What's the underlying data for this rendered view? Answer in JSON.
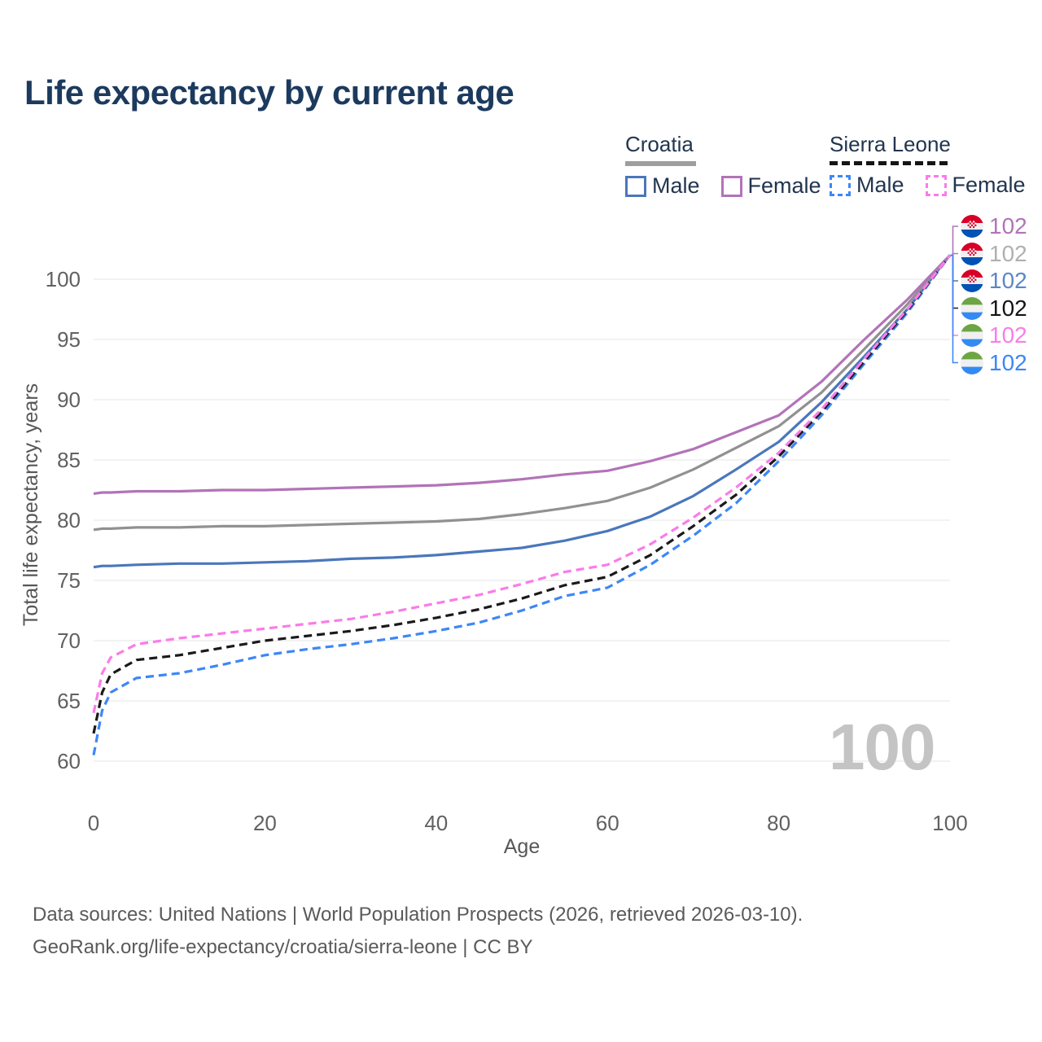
{
  "title": "Life expectancy by current age",
  "watermark": "100",
  "legend": {
    "groups": [
      {
        "country": "Croatia",
        "line_style": "solid",
        "underline_color": "#9e9e9e",
        "items": [
          {
            "label": "Male",
            "color": "#4a77bb",
            "dashed": false
          },
          {
            "label": "Female",
            "color": "#b273b8",
            "dashed": false
          }
        ]
      },
      {
        "country": "Sierra Leone",
        "line_style": "dashed",
        "underline_color": "#151515",
        "items": [
          {
            "label": "Male",
            "color": "#3c87f7",
            "dashed": true
          },
          {
            "label": "Female",
            "color": "#fa7ce9",
            "dashed": true
          }
        ]
      }
    ]
  },
  "footer": {
    "line1": "Data sources: United Nations | World Population Prospects (2026, retrieved 2026-03-10).",
    "line2": "GeoRank.org/life-expectancy/croatia/sierra-leone | CC BY"
  },
  "chart_data": {
    "type": "line",
    "title": "Life expectancy by current age",
    "xlabel": "Age",
    "ylabel": "Total life expectancy, years",
    "x_ticks": [
      0,
      20,
      40,
      60,
      80,
      100
    ],
    "y_ticks": [
      60,
      65,
      70,
      75,
      80,
      85,
      90,
      95,
      100
    ],
    "xlim": [
      0,
      100
    ],
    "ylim": [
      60,
      102
    ],
    "grid": "horizontal",
    "legend_position": "top-right",
    "gridline_color": "#ebebeb",
    "ages": [
      0,
      1,
      2,
      5,
      10,
      15,
      20,
      25,
      30,
      35,
      40,
      45,
      50,
      55,
      60,
      65,
      70,
      75,
      80,
      85,
      90,
      95,
      100
    ],
    "series": [
      {
        "id": "croatia-female",
        "name": "Croatia Female",
        "country": "Croatia",
        "sex": "Female",
        "style": "solid",
        "color": "#b273b8",
        "label_color": "#b273b8",
        "flag": "croatia",
        "end_label": "102",
        "values": [
          82.2,
          82.3,
          82.3,
          82.4,
          82.4,
          82.5,
          82.5,
          82.6,
          82.7,
          82.8,
          82.9,
          83.1,
          83.4,
          83.8,
          84.1,
          84.9,
          85.9,
          87.3,
          88.7,
          91.5,
          95.0,
          98.3,
          102
        ]
      },
      {
        "id": "croatia-total",
        "name": "Croatia Both sexes",
        "country": "Croatia",
        "sex": "Both",
        "style": "solid",
        "color": "#919191",
        "label_color": "#b0b0b0",
        "flag": "croatia",
        "end_label": "102",
        "values": [
          79.2,
          79.3,
          79.3,
          79.4,
          79.4,
          79.5,
          79.5,
          79.6,
          79.7,
          79.8,
          79.9,
          80.1,
          80.5,
          81.0,
          81.6,
          82.7,
          84.2,
          86.0,
          87.8,
          90.6,
          94.2,
          97.9,
          102
        ]
      },
      {
        "id": "croatia-male",
        "name": "Croatia Male",
        "country": "Croatia",
        "sex": "Male",
        "style": "solid",
        "color": "#4a77bb",
        "label_color": "#5b87c6",
        "flag": "croatia",
        "end_label": "102",
        "values": [
          76.1,
          76.2,
          76.2,
          76.3,
          76.4,
          76.4,
          76.5,
          76.6,
          76.8,
          76.9,
          77.1,
          77.4,
          77.7,
          78.3,
          79.1,
          80.3,
          82.0,
          84.2,
          86.5,
          89.8,
          93.6,
          97.5,
          102
        ]
      },
      {
        "id": "sierraleone-total",
        "name": "Sierra Leone Both sexes",
        "country": "Sierra Leone",
        "sex": "Both",
        "style": "dashed",
        "color": "#1a1a1a",
        "label_color": "#141414",
        "flag": "sierra-leone",
        "end_label": "102",
        "values": [
          62.3,
          65.7,
          67.2,
          68.4,
          68.8,
          69.4,
          70.0,
          70.4,
          70.8,
          71.3,
          71.9,
          72.6,
          73.5,
          74.6,
          75.3,
          77.1,
          79.5,
          82.1,
          85.3,
          89.0,
          93.2,
          97.4,
          102
        ]
      },
      {
        "id": "sierraleone-female",
        "name": "Sierra Leone Female",
        "country": "Sierra Leone",
        "sex": "Female",
        "style": "dashed",
        "color": "#fa7ce9",
        "label_color": "#fa7ce9",
        "flag": "sierra-leone",
        "end_label": "102",
        "values": [
          64.0,
          67.3,
          68.6,
          69.7,
          70.2,
          70.6,
          71.0,
          71.4,
          71.8,
          72.4,
          73.1,
          73.8,
          74.7,
          75.7,
          76.3,
          78.0,
          80.2,
          82.7,
          85.6,
          89.2,
          93.4,
          97.5,
          102
        ]
      },
      {
        "id": "sierraleone-male",
        "name": "Sierra Leone Male",
        "country": "Sierra Leone",
        "sex": "Male",
        "style": "dashed",
        "color": "#3c87f7",
        "label_color": "#3c87f7",
        "flag": "sierra-leone",
        "end_label": "102",
        "values": [
          60.5,
          64.2,
          65.7,
          66.9,
          67.3,
          68.0,
          68.8,
          69.3,
          69.7,
          70.2,
          70.8,
          71.5,
          72.5,
          73.7,
          74.4,
          76.3,
          78.7,
          81.4,
          84.9,
          88.7,
          93.0,
          97.2,
          102
        ]
      }
    ],
    "label_rows_top_to_bottom": [
      "croatia-female",
      "croatia-total",
      "croatia-male",
      "sierraleone-total",
      "sierraleone-female",
      "sierraleone-male"
    ]
  }
}
